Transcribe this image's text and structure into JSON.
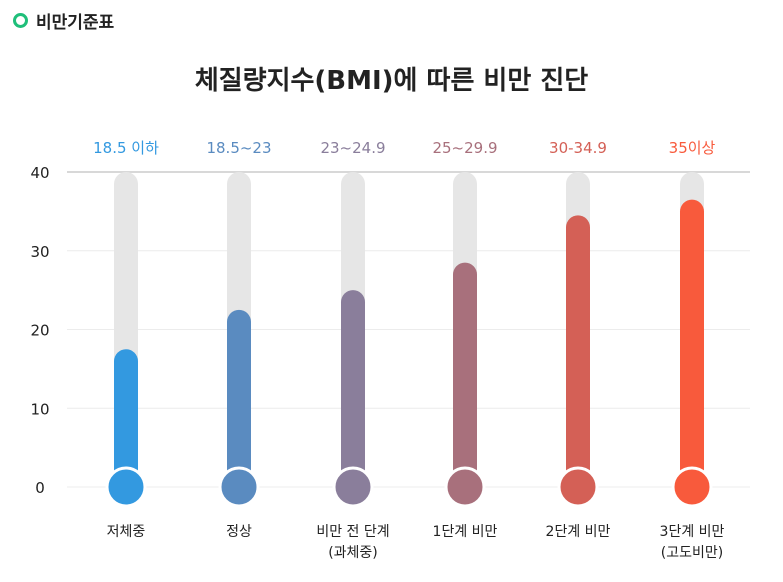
{
  "header": {
    "label": "비만기준표",
    "icon": "circle-outline-icon",
    "icon_color": "#1fbf7a"
  },
  "chart_data": {
    "type": "bar",
    "title": "체질량지수(BMI)에 따른 비만 진단",
    "categories": [
      "저체중",
      "정상",
      "비만 전 단계\n(과체중)",
      "1단계 비만",
      "2단계 비만",
      "3단계 비만\n(고도비만)"
    ],
    "ranges": [
      "18.5 이하",
      "18.5~23",
      "23~24.9",
      "25~29.9",
      "30-34.9",
      "35이상"
    ],
    "values": [
      17.5,
      22.5,
      25,
      28.5,
      34.5,
      36.5
    ],
    "colors": [
      "#3399e0",
      "#5a8bc0",
      "#8a7e9b",
      "#a8707c",
      "#d46056",
      "#f85a3c"
    ],
    "track_max": 40,
    "ylim": [
      0,
      40
    ],
    "yticks": [
      0,
      10,
      20,
      30,
      40
    ],
    "grid": true,
    "style": "thermometer"
  }
}
